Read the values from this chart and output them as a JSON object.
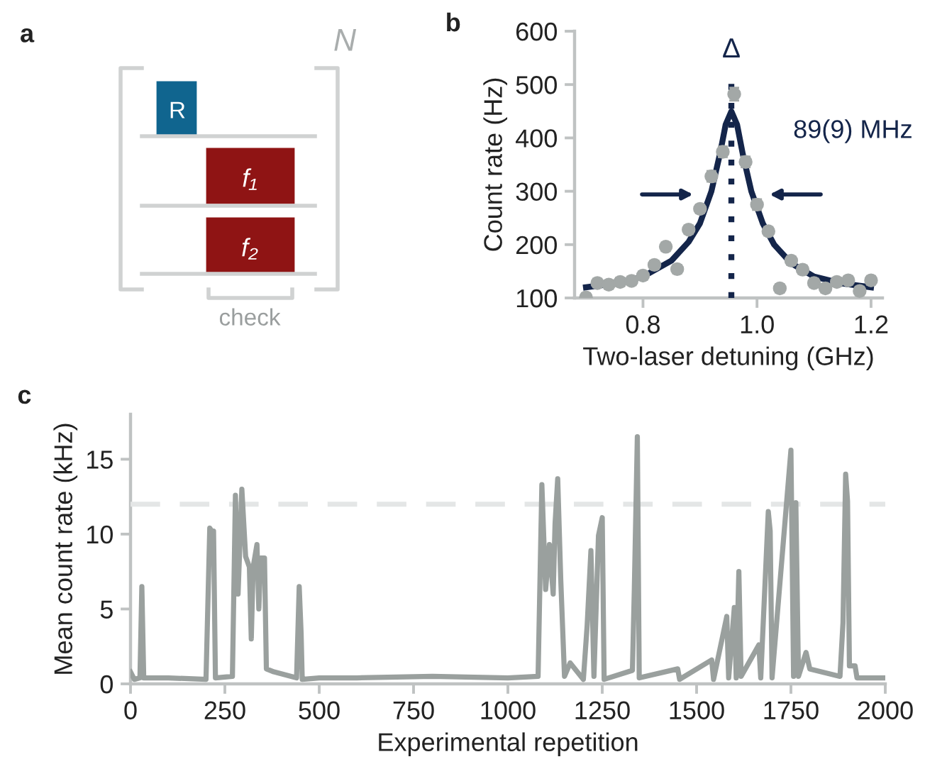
{
  "chart_data": [
    {
      "type": "other",
      "title": "a",
      "annotations": [
        "N",
        "R",
        "f₁",
        "f₂",
        "check"
      ]
    },
    {
      "type": "scatter",
      "title": "b",
      "xlabel": "Two-laser detuning (GHz)",
      "ylabel": "Count rate (Hz)",
      "xlim": [
        0.68,
        1.22
      ],
      "xticks": [
        {
          "value": 0.8,
          "label": "0.8"
        },
        {
          "value": 1.0,
          "label": "1.0"
        },
        {
          "value": 1.2,
          "label": "1.2"
        }
      ],
      "ylim": [
        100,
        600
      ],
      "yticks": [
        100,
        200,
        300,
        400,
        500,
        600
      ],
      "grid": false,
      "marker": "circle",
      "series": [
        {
          "type": "scatter",
          "color": "#a3a8a7",
          "x": [
            0.7,
            0.72,
            0.74,
            0.76,
            0.78,
            0.8,
            0.82,
            0.84,
            0.86,
            0.88,
            0.9,
            0.92,
            0.94,
            0.96,
            0.98,
            1.0,
            1.02,
            1.04,
            1.06,
            1.08,
            1.1,
            1.12,
            1.14,
            1.16,
            1.18,
            1.2
          ],
          "values": [
            101,
            128,
            125,
            130,
            132,
            142,
            162,
            196,
            154,
            228,
            267,
            328,
            374,
            482,
            355,
            275,
            225,
            118,
            170,
            153,
            128,
            118,
            130,
            133,
            113,
            133
          ],
          "errors": [
            8,
            8,
            8,
            8,
            8,
            8,
            8,
            8,
            8,
            8,
            8,
            10,
            10,
            12,
            10,
            10,
            8,
            8,
            8,
            8,
            8,
            8,
            8,
            8,
            8,
            8
          ]
        },
        {
          "type": "line",
          "color": "#14254a",
          "line_style": "solid",
          "marker": "none",
          "x": [
            0.7,
            0.75,
            0.8,
            0.85,
            0.88,
            0.9,
            0.92,
            0.935,
            0.945,
            0.955,
            0.965,
            0.975,
            0.99,
            1.01,
            1.03,
            1.06,
            1.1,
            1.15,
            1.2
          ],
          "values": [
            120,
            127,
            140,
            170,
            205,
            240,
            300,
            370,
            425,
            450,
            425,
            370,
            300,
            240,
            200,
            165,
            140,
            127,
            120
          ]
        }
      ],
      "ref_lines": [
        {
          "axis": "x",
          "value": 0.955,
          "label": "Δ",
          "color": "#14254a",
          "line_style": "dotted"
        }
      ],
      "annotations": [
        {
          "text": "89(9) MHz",
          "x": 1.015,
          "y": 294
        }
      ]
    },
    {
      "type": "line",
      "title": "c",
      "xlabel": "Experimental repetition",
      "ylabel": "Mean count rate (kHz)",
      "xlim": [
        0,
        2000
      ],
      "xticks": [
        0,
        250,
        500,
        750,
        1000,
        1250,
        1500,
        1750,
        2000
      ],
      "ylim": [
        0,
        18
      ],
      "yticks": [
        0,
        5,
        10,
        15
      ],
      "grid": false,
      "marker": "none",
      "line_style": "solid",
      "series": [
        {
          "color": "#9aa09e",
          "x": [
            0,
            10,
            25,
            30,
            35,
            100,
            200,
            210,
            215,
            220,
            225,
            270,
            278,
            285,
            295,
            305,
            315,
            320,
            325,
            335,
            340,
            345,
            355,
            360,
            380,
            440,
            447,
            452,
            455,
            500,
            600,
            800,
            1000,
            1080,
            1090,
            1100,
            1110,
            1120,
            1125,
            1132,
            1140,
            1150,
            1165,
            1200,
            1210,
            1220,
            1228,
            1240,
            1250,
            1255,
            1330,
            1335,
            1343,
            1348,
            1450,
            1455,
            1540,
            1545,
            1580,
            1585,
            1600,
            1605,
            1612,
            1618,
            1665,
            1670,
            1690,
            1695,
            1700,
            1750,
            1757,
            1763,
            1770,
            1790,
            1800,
            1880,
            1888,
            1895,
            1900,
            1905,
            1920,
            1925,
            2000
          ],
          "values": [
            0.8,
            0.3,
            0.4,
            6.5,
            0.4,
            0.4,
            0.3,
            10.4,
            10.2,
            10.2,
            0.4,
            0.5,
            12.6,
            6,
            13.0,
            8.5,
            7.8,
            3,
            7.8,
            9.3,
            5,
            8.4,
            8.4,
            1.0,
            0.8,
            0.4,
            6.5,
            3.4,
            0.3,
            0.4,
            0.4,
            0.5,
            0.4,
            0.5,
            13.3,
            6.3,
            9.3,
            6,
            10.7,
            13.7,
            7,
            0.5,
            1.4,
            0.3,
            3.9,
            8.9,
            0.5,
            9.9,
            11.1,
            0.3,
            0.9,
            6.3,
            16.5,
            0.4,
            1.0,
            0.3,
            1.6,
            0.3,
            4.5,
            0.4,
            5.1,
            0.4,
            7.5,
            0.5,
            2.6,
            0.4,
            11.5,
            10.2,
            0.4,
            15.6,
            0.5,
            12.1,
            0.5,
            2.1,
            1.0,
            0.5,
            4.1,
            14.0,
            12.2,
            1.2,
            1.2,
            0.4,
            0.4
          ]
        }
      ],
      "ref_lines": [
        {
          "axis": "y",
          "value": 12,
          "color": "#e4e6e6",
          "line_style": "dashed"
        }
      ]
    }
  ]
}
